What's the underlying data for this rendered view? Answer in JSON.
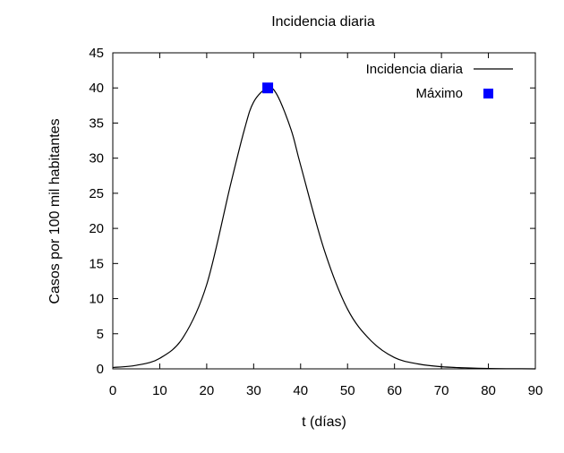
{
  "chart_data": {
    "type": "line",
    "title": "Incidencia diaria",
    "xlabel": "t (días)",
    "ylabel": "Casos por 100 mil habitantes",
    "xlim": [
      0,
      90
    ],
    "ylim": [
      0,
      45
    ],
    "xticks": [
      0,
      10,
      20,
      30,
      40,
      50,
      60,
      70,
      80,
      90
    ],
    "yticks": [
      0,
      5,
      10,
      15,
      20,
      25,
      30,
      35,
      40,
      45
    ],
    "grid": false,
    "legend_position": "top-right",
    "series": [
      {
        "name": "Incidencia diaria",
        "kind": "line",
        "color": "#000000",
        "x": [
          0,
          5,
          10,
          15,
          20,
          25,
          28,
          30,
          33,
          35,
          38,
          40,
          45,
          50,
          55,
          60,
          65,
          70,
          75,
          80,
          85,
          90
        ],
        "y": [
          0.2,
          0.5,
          1.5,
          4.5,
          12,
          26,
          34,
          38,
          40,
          39,
          34,
          29,
          17,
          8.5,
          4,
          1.6,
          0.7,
          0.3,
          0.15,
          0.05,
          0.02,
          0
        ]
      },
      {
        "name": "Máximo",
        "kind": "point",
        "marker": "square",
        "color": "#0000ff",
        "x": [
          33
        ],
        "y": [
          40
        ]
      }
    ]
  }
}
